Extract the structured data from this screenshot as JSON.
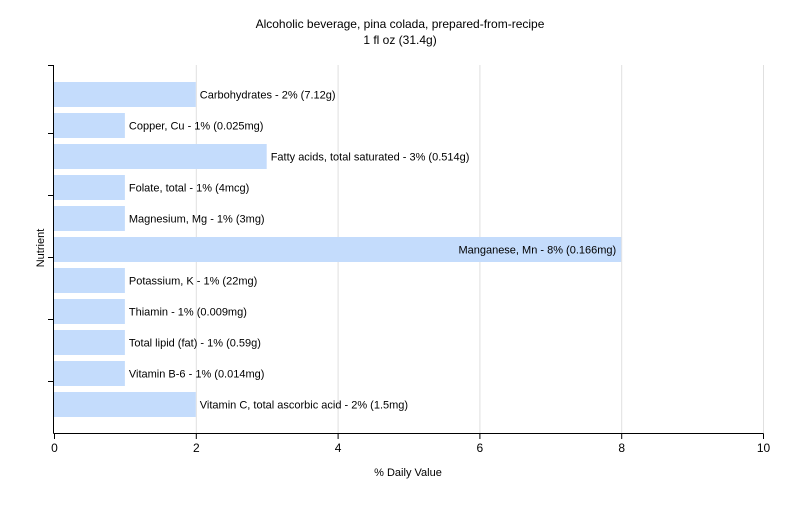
{
  "chart_data": {
    "type": "bar",
    "orientation": "horizontal",
    "title": "Alcoholic beverage, pina colada, prepared-from-recipe",
    "subtitle": "1 fl oz (31.4g)",
    "xlabel": "% Daily Value",
    "ylabel": "Nutrient",
    "xlim": [
      0,
      10
    ],
    "xticks": [
      "0",
      "2",
      "4",
      "6",
      "8",
      "10"
    ],
    "grid": true,
    "colors": {
      "bar": "#c4dcfc",
      "grid": "#e0e0e0",
      "axis": "#000000",
      "text": "#000000"
    },
    "categories": [
      "Carbohydrates",
      "Copper, Cu",
      "Fatty acids, total saturated",
      "Folate, total",
      "Magnesium, Mg",
      "Manganese, Mn",
      "Potassium, K",
      "Thiamin",
      "Total lipid (fat)",
      "Vitamin B-6",
      "Vitamin C, total ascorbic acid"
    ],
    "values": [
      2,
      1,
      3,
      1,
      1,
      8,
      1,
      1,
      1,
      1,
      2
    ],
    "labels": [
      "Carbohydrates - 2% (7.12g)",
      "Copper, Cu - 1% (0.025mg)",
      "Fatty acids, total saturated - 3% (0.514g)",
      "Folate, total - 1% (4mcg)",
      "Magnesium, Mg - 1% (3mg)",
      "Manganese, Mn - 8% (0.166mg)",
      "Potassium, K - 1% (22mg)",
      "Thiamin - 1% (0.009mg)",
      "Total lipid (fat) - 1% (0.59g)",
      "Vitamin B-6 - 1% (0.014mg)",
      "Vitamin C, total ascorbic acid - 2% (1.5mg)"
    ]
  }
}
